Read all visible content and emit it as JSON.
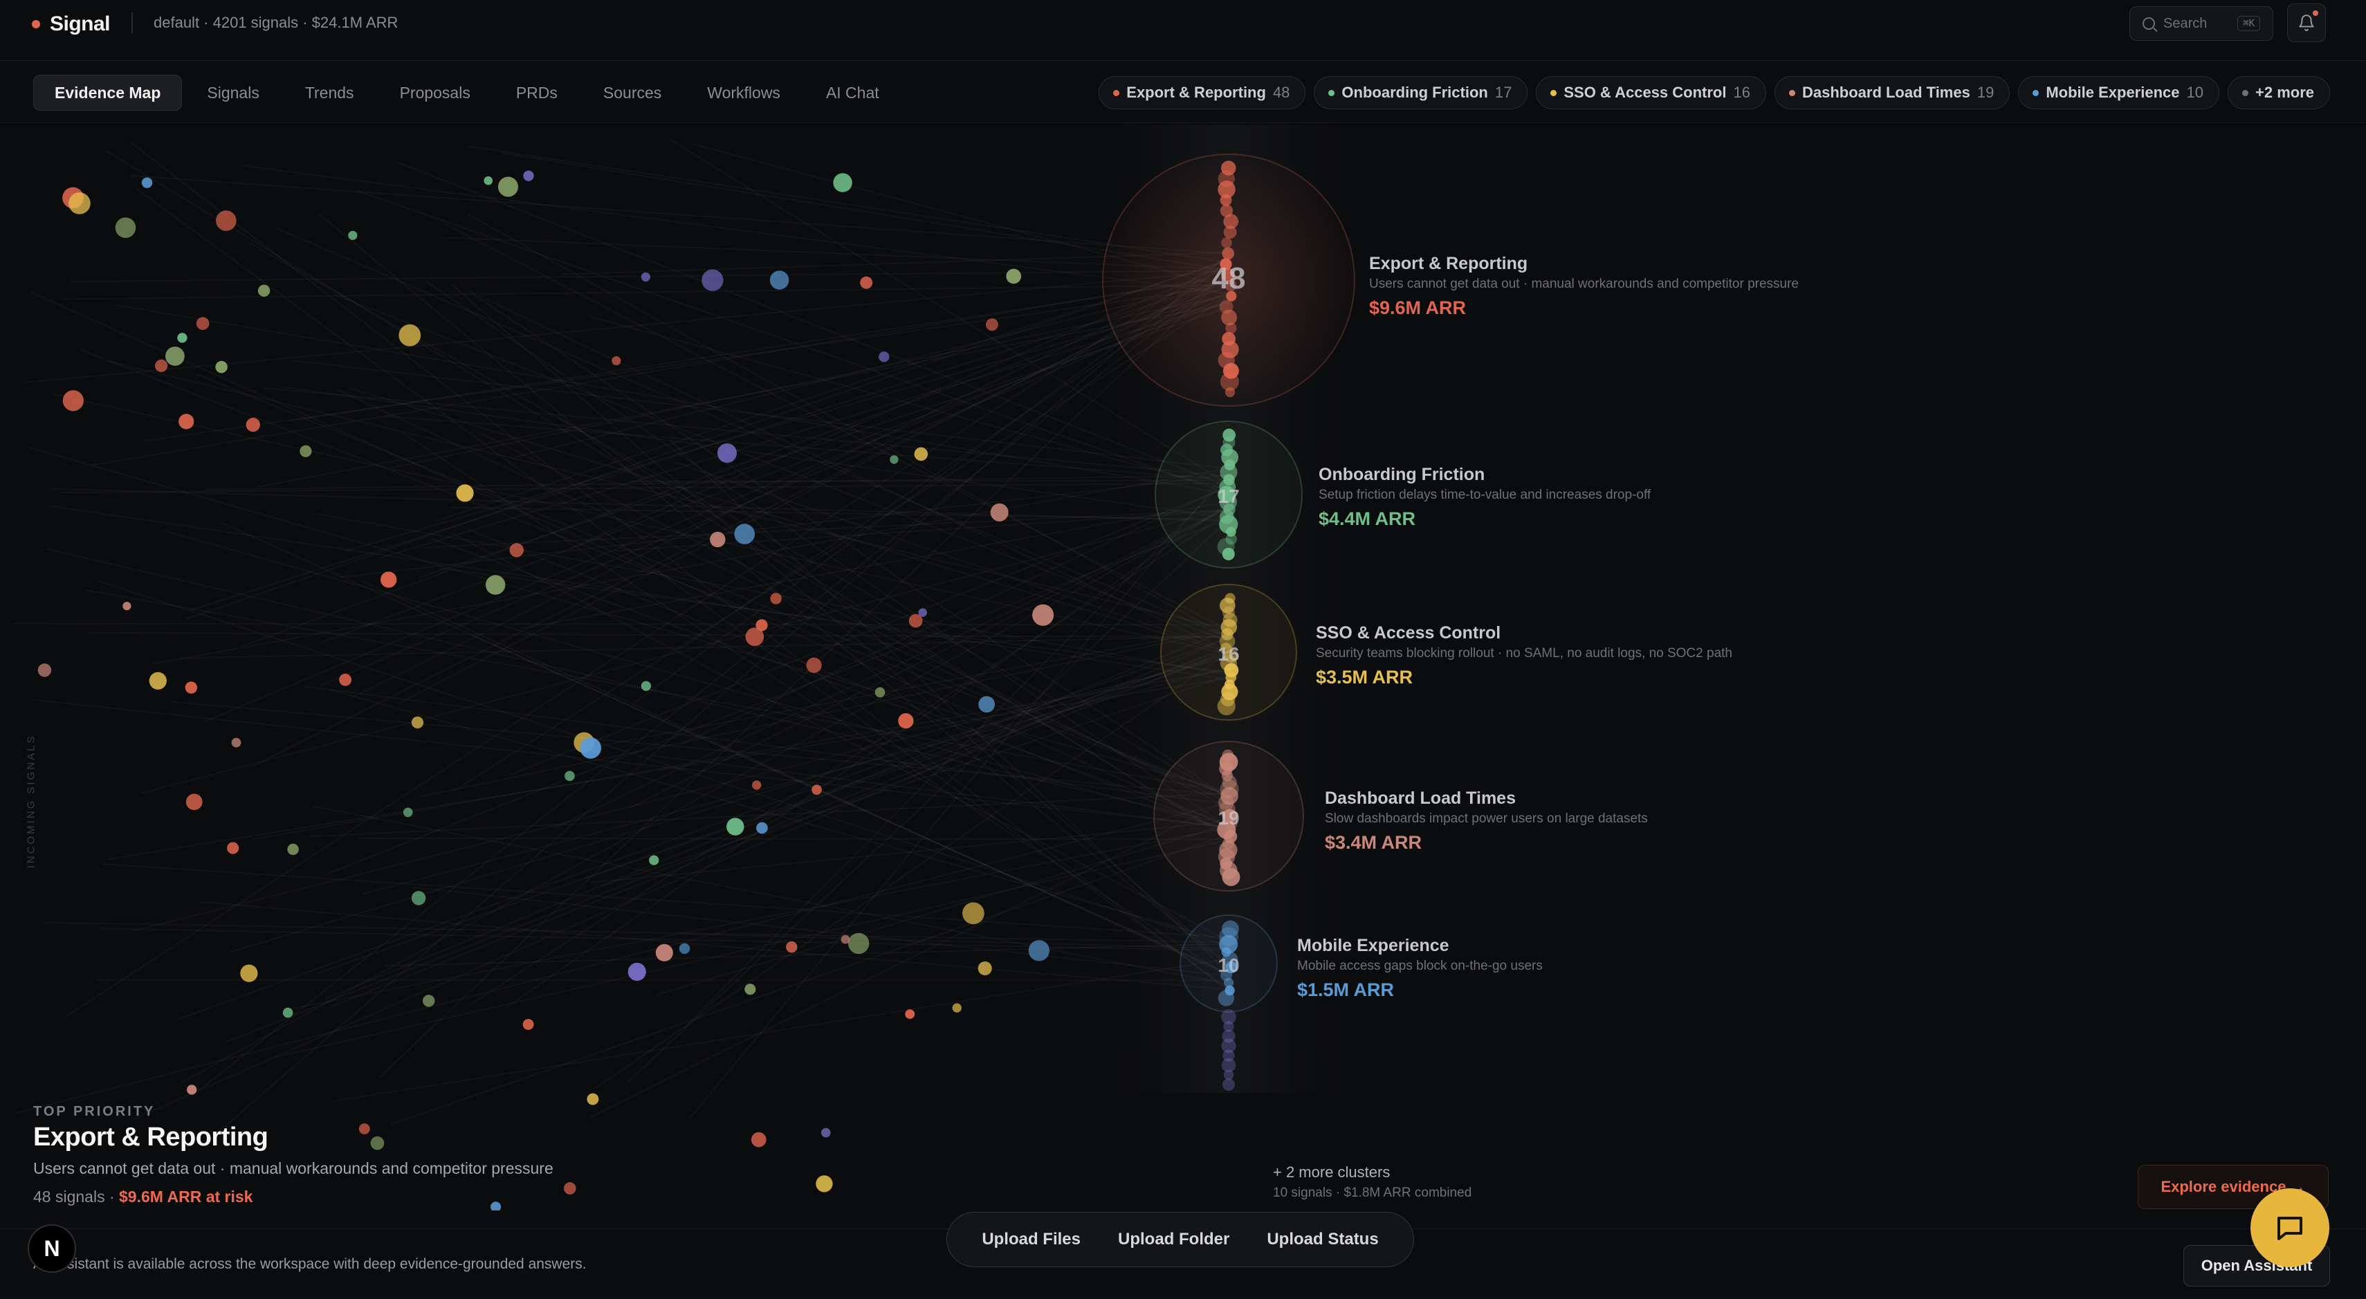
{
  "app": {
    "name": "Signal",
    "workspace_meta": "default · 4201 signals · $24.1M ARR",
    "search_placeholder": "Search",
    "search_shortcut": "⌘K"
  },
  "nav": {
    "tabs": [
      {
        "label": "Evidence Map",
        "active": true
      },
      {
        "label": "Signals"
      },
      {
        "label": "Trends"
      },
      {
        "label": "Proposals"
      },
      {
        "label": "PRDs"
      },
      {
        "label": "Sources"
      },
      {
        "label": "Workflows"
      },
      {
        "label": "AI Chat"
      }
    ],
    "chips": [
      {
        "label": "Export & Reporting",
        "count": "48",
        "color": "#e0664f"
      },
      {
        "label": "Onboarding Friction",
        "count": "17",
        "color": "#6fbf8a"
      },
      {
        "label": "SSO & Access Control",
        "count": "16",
        "color": "#e6c04f"
      },
      {
        "label": "Dashboard Load Times",
        "count": "19",
        "color": "#c9887a"
      },
      {
        "label": "Mobile Experience",
        "count": "10",
        "color": "#5b9bd5"
      }
    ],
    "more_chip": "+2 more"
  },
  "map": {
    "side_label": "INCOMING SIGNALS",
    "clusters": [
      {
        "name": "Export & Reporting",
        "count": "48",
        "desc": "Users cannot get data out · manual workarounds and competitor pressure",
        "arr": "$9.6M ARR",
        "color": "#e0664f"
      },
      {
        "name": "Onboarding Friction",
        "count": "17",
        "desc": "Setup friction delays time-to-value and increases drop-off",
        "arr": "$4.4M ARR",
        "color": "#6fbf8a"
      },
      {
        "name": "SSO & Access Control",
        "count": "16",
        "desc": "Security teams blocking rollout · no SAML, no audit logs, no SOC2 path",
        "arr": "$3.5M ARR",
        "color": "#e6c04f"
      },
      {
        "name": "Dashboard Load Times",
        "count": "19",
        "desc": "Slow dashboards impact power users on large datasets",
        "arr": "$3.4M ARR",
        "color": "#c9887a"
      },
      {
        "name": "Mobile Experience",
        "count": "10",
        "desc": "Mobile access gaps block on-the-go users",
        "arr": "$1.5M ARR",
        "color": "#5b9bd5"
      }
    ],
    "more_clusters": {
      "title": "+ 2 more clusters",
      "subtitle": "10 signals · $1.8M ARR combined"
    }
  },
  "priority": {
    "kicker": "TOP PRIORITY",
    "title": "Export & Reporting",
    "desc": "Users cannot get data out · manual workarounds and competitor pressure",
    "signals": "48 signals · ",
    "risk": "$9.6M ARR at risk"
  },
  "actions": {
    "explore": "Explore evidence →",
    "upload_files": "Upload Files",
    "upload_folder": "Upload Folder",
    "upload_status": "Upload Status",
    "open_assistant": "Open Assistant",
    "badge_letter": "N"
  },
  "footer": {
    "text": "AI Assistant is available across the workspace with deep evidence-grounded answers."
  }
}
